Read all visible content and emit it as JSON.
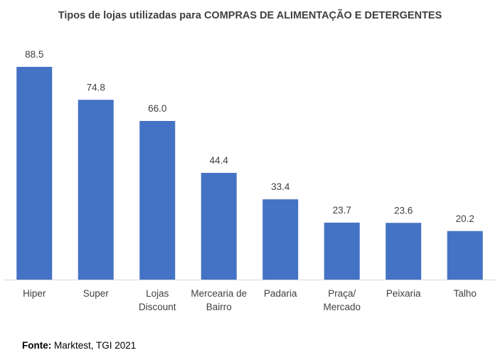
{
  "chart_data": {
    "type": "bar",
    "title": "Tipos de lojas utilizadas para COMPRAS DE ALIMENTAÇÃO E DETERGENTES",
    "categories": [
      [
        "Hiper"
      ],
      [
        "Super"
      ],
      [
        "Lojas",
        "Discount"
      ],
      [
        "Mercearia de",
        "Bairro"
      ],
      [
        "Padaria"
      ],
      [
        "Praça/",
        "Mercado"
      ],
      [
        "Peixaria"
      ],
      [
        "Talho"
      ]
    ],
    "values": [
      88.5,
      74.8,
      66.0,
      44.4,
      33.4,
      23.7,
      23.6,
      20.2
    ],
    "value_labels": [
      "88.5",
      "74.8",
      "66.0",
      "44.4",
      "33.4",
      "23.7",
      "23.6",
      "20.2"
    ],
    "xlabel": "",
    "ylabel": "",
    "ylim": [
      0,
      88.5
    ],
    "grid": false,
    "legend": "none",
    "bar_color": "#4472C4"
  },
  "source": {
    "label": "Fonte:",
    "text": " Marktest, TGI 2021"
  }
}
